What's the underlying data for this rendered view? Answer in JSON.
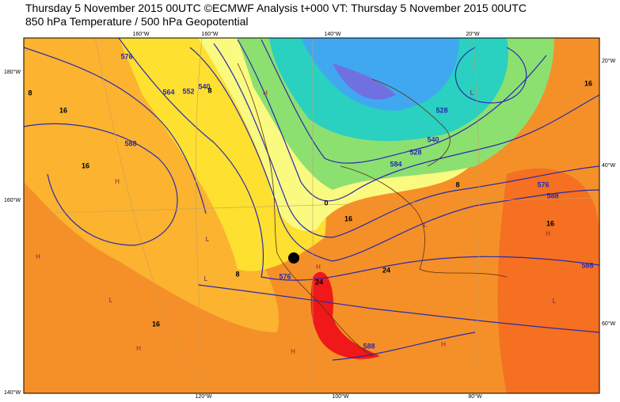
{
  "header": {
    "line1": "Thursday 5 November 2015 00UTC ©ECMWF Analysis t+000 VT: Thursday 5 November 2015 00UTC",
    "line2": "850 hPa Temperature / 500 hPa Geopotential"
  },
  "map": {
    "edge_labels": [
      "160°W",
      "160°W",
      "140°W",
      "20°W",
      "180°W",
      "160°W",
      "140°W",
      "120°W",
      "100°W",
      "80°W",
      "20°W",
      "40°W",
      "60°W"
    ],
    "contour_labels": [
      16,
      16,
      588,
      564,
      552,
      540,
      576,
      528,
      8,
      0,
      16,
      24,
      576,
      8,
      584,
      528,
      540,
      8,
      576,
      588,
      16,
      588,
      16,
      16,
      24,
      588,
      8
    ],
    "pressure_centers": [
      "H",
      "H",
      "H",
      "L",
      "L",
      "H",
      "L",
      "H",
      "L",
      "L",
      "H",
      "H",
      "L",
      "H"
    ]
  }
}
